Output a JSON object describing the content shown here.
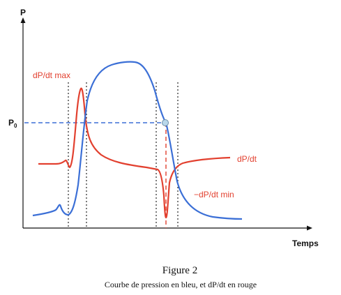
{
  "diagram": {
    "y_axis_label": "P",
    "p0_label": "P",
    "p0_subscript": "0",
    "x_axis_label": "Temps",
    "dpdt_max_label": "dP/dt max",
    "dpdt_label": "dP/dt",
    "dpdt_min_label": "−dP/dt min"
  },
  "caption": {
    "title": "Figure 2",
    "subtitle": "Courbe de pression en bleu, et dP/dt en rouge"
  },
  "colors": {
    "pressure_curve": "#3b6fd6",
    "derivative_curve": "#e2402f",
    "axis": "#111111",
    "p0_marker_fill": "#b9d7ea"
  }
}
